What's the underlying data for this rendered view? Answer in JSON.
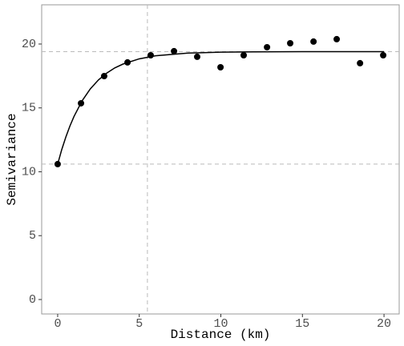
{
  "chart_data": {
    "type": "scatter",
    "x_label": "Distance (km)",
    "y_label": "Semivariance",
    "x": [
      0,
      1.43,
      2.85,
      4.28,
      5.7,
      7.13,
      8.55,
      9.98,
      11.4,
      12.83,
      14.25,
      15.68,
      17.1,
      18.53,
      19.95
    ],
    "values": [
      10.6,
      15.36,
      17.49,
      18.56,
      19.12,
      19.44,
      19.0,
      18.18,
      19.12,
      19.75,
      20.06,
      20.19,
      20.38,
      18.5,
      19.12
    ],
    "color": "#000000",
    "fit": {
      "color": "#000000",
      "x": [
        0,
        0.25,
        0.5,
        0.75,
        1,
        1.5,
        2,
        2.5,
        3,
        3.5,
        4,
        5,
        6,
        8,
        10,
        12,
        15,
        20
      ],
      "values": [
        10.6,
        11.74,
        12.72,
        13.58,
        14.33,
        15.56,
        16.49,
        17.19,
        17.72,
        18.13,
        18.43,
        18.84,
        19.08,
        19.29,
        19.36,
        19.39,
        19.4,
        19.4
      ]
    },
    "hlines": [
      10.6,
      19.4
    ],
    "vlines": [
      5.5
    ],
    "xlim": [
      -0.98,
      20.93
    ],
    "ylim": [
      -1.13,
      23.07
    ],
    "xticks": [
      0,
      5,
      10,
      15,
      20
    ],
    "yticks": [
      0,
      5,
      10,
      15,
      20
    ]
  }
}
